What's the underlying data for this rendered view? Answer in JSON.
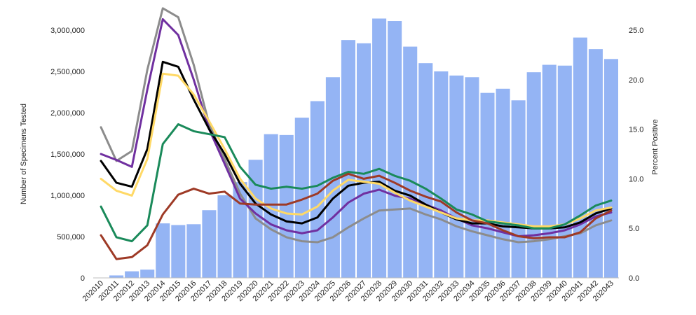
{
  "chart_data": {
    "type": "bar",
    "categories": [
      "202010",
      "202011",
      "202012",
      "202013",
      "202014",
      "202015",
      "202016",
      "202017",
      "202018",
      "202019",
      "202020",
      "202021",
      "202022",
      "202023",
      "202024",
      "202025",
      "202026",
      "202027",
      "202028",
      "202029",
      "202030",
      "202031",
      "202032",
      "202033",
      "202034",
      "202035",
      "202036",
      "202037",
      "202038",
      "202039",
      "202040",
      "202041",
      "202042",
      "202043"
    ],
    "ylabel": "Number of Specimens Tested",
    "y2label": "Percent Positive",
    "ylim": [
      0,
      3000000
    ],
    "y2lim": [
      0,
      25
    ],
    "y_ticks": [
      "0",
      "500,000",
      "1,000,000",
      "1,500,000",
      "2,000,000",
      "2,500,000",
      "3,000,000"
    ],
    "y2_ticks": [
      "0.0",
      "5.0",
      "10.0",
      "15.0",
      "20.0",
      "25.0"
    ],
    "bar_color": "#94b4f4",
    "bars": [
      0,
      30000,
      80000,
      100000,
      660000,
      640000,
      650000,
      820000,
      1000000,
      1160000,
      1430000,
      1740000,
      1730000,
      1940000,
      2140000,
      2430000,
      2880000,
      2840000,
      3140000,
      3110000,
      2800000,
      2600000,
      2500000,
      2450000,
      2430000,
      2240000,
      2290000,
      2150000,
      2490000,
      2580000,
      2570000,
      2910000,
      2770000,
      2650000
    ],
    "series": [
      {
        "color": "#8c8c8c",
        "values": [
          15.2,
          11.8,
          12.8,
          21.0,
          27.2,
          26.3,
          21.5,
          15.5,
          12.0,
          8.5,
          6.0,
          4.9,
          4.1,
          3.7,
          3.6,
          4.1,
          5.1,
          6.0,
          6.8,
          6.9,
          7.0,
          6.4,
          5.9,
          5.2,
          4.7,
          4.3,
          3.9,
          3.6,
          3.7,
          3.9,
          4.2,
          4.5,
          5.3,
          5.8
        ]
      },
      {
        "color": "#7030a0",
        "values": [
          12.5,
          11.9,
          11.2,
          19.0,
          26.1,
          24.5,
          20.0,
          15.0,
          11.5,
          8.0,
          6.5,
          5.4,
          4.8,
          4.5,
          4.8,
          6.1,
          7.6,
          8.5,
          8.9,
          8.3,
          8.0,
          7.4,
          6.8,
          6.0,
          5.3,
          5.0,
          4.6,
          4.2,
          4.3,
          4.5,
          4.8,
          5.4,
          6.2,
          6.6
        ]
      },
      {
        "color": "#000000",
        "values": [
          11.8,
          9.6,
          9.2,
          13.0,
          21.8,
          21.3,
          18.0,
          15.0,
          12.5,
          9.5,
          7.5,
          6.4,
          5.7,
          5.5,
          6.1,
          8.0,
          9.3,
          9.6,
          9.7,
          8.8,
          8.3,
          7.4,
          6.6,
          5.9,
          5.5,
          5.5,
          5.2,
          5.1,
          5.0,
          5.0,
          5.1,
          5.6,
          6.5,
          7.0
        ]
      },
      {
        "color": "#ffd966",
        "values": [
          10.0,
          8.8,
          8.3,
          12.0,
          20.6,
          20.4,
          18.5,
          15.8,
          13.0,
          10.0,
          8.0,
          7.0,
          6.5,
          6.4,
          7.2,
          8.8,
          9.9,
          9.7,
          9.5,
          8.6,
          7.8,
          7.2,
          6.6,
          6.0,
          5.8,
          5.8,
          5.6,
          5.4,
          5.2,
          5.2,
          5.4,
          6.0,
          6.8,
          7.1
        ]
      },
      {
        "color": "#1a8a5a",
        "values": [
          7.2,
          4.1,
          3.7,
          5.3,
          13.5,
          15.5,
          14.8,
          14.5,
          14.2,
          11.2,
          9.4,
          9.0,
          9.2,
          9.0,
          9.3,
          10.1,
          10.7,
          10.5,
          11.0,
          10.3,
          9.8,
          9.0,
          8.0,
          6.9,
          6.4,
          5.7,
          5.5,
          5.3,
          5.0,
          5.0,
          5.4,
          6.3,
          7.3,
          7.8
        ]
      },
      {
        "color": "#9e3a26",
        "values": [
          4.3,
          1.9,
          2.1,
          3.3,
          6.4,
          8.4,
          9.0,
          8.5,
          8.7,
          7.5,
          7.4,
          7.4,
          7.4,
          7.9,
          8.5,
          9.8,
          10.5,
          10.0,
          10.3,
          9.6,
          8.8,
          8.2,
          7.7,
          6.6,
          5.8,
          5.5,
          4.8,
          4.2,
          4.0,
          4.1,
          4.1,
          4.6,
          6.0,
          6.8
        ]
      }
    ]
  }
}
